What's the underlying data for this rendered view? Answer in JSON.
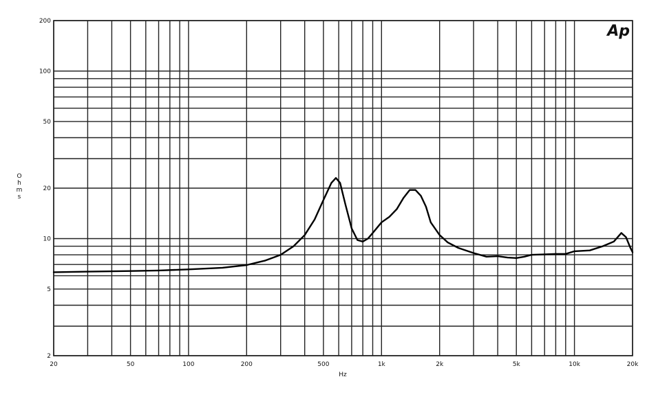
{
  "chart_data": {
    "type": "line",
    "x_scale": "log",
    "y_scale": "log",
    "xlim": [
      20,
      20000
    ],
    "ylim": [
      2,
      200
    ],
    "xlabel": "Hz",
    "ylabel": "Ohms",
    "grid": true,
    "logo": "Ap",
    "x_ticks": [
      {
        "value": 20,
        "label": "20"
      },
      {
        "value": 50,
        "label": "50"
      },
      {
        "value": 100,
        "label": "100"
      },
      {
        "value": 200,
        "label": "200"
      },
      {
        "value": 500,
        "label": "500"
      },
      {
        "value": 1000,
        "label": "1k"
      },
      {
        "value": 2000,
        "label": "2k"
      },
      {
        "value": 5000,
        "label": "5k"
      },
      {
        "value": 10000,
        "label": "10k"
      },
      {
        "value": 20000,
        "label": "20k"
      }
    ],
    "y_ticks": [
      {
        "value": 2,
        "label": "2"
      },
      {
        "value": 5,
        "label": "5"
      },
      {
        "value": 10,
        "label": "10"
      },
      {
        "value": 20,
        "label": "20"
      },
      {
        "value": 50,
        "label": "50"
      },
      {
        "value": 100,
        "label": "100"
      },
      {
        "value": 200,
        "label": "200"
      }
    ],
    "x_grid": [
      20,
      30,
      40,
      50,
      60,
      70,
      80,
      90,
      100,
      200,
      300,
      400,
      500,
      600,
      700,
      800,
      900,
      1000,
      2000,
      3000,
      4000,
      5000,
      6000,
      7000,
      8000,
      9000,
      10000,
      20000
    ],
    "y_grid": [
      2,
      3,
      4,
      5,
      6,
      7,
      8,
      9,
      10,
      20,
      30,
      40,
      50,
      60,
      70,
      80,
      90,
      100,
      200
    ],
    "series": [
      {
        "color": "#000000",
        "x": [
          20,
          30,
          50,
          70,
          100,
          150,
          200,
          250,
          300,
          350,
          400,
          450,
          500,
          550,
          580,
          610,
          650,
          700,
          750,
          800,
          850,
          900,
          1000,
          1100,
          1200,
          1300,
          1400,
          1500,
          1600,
          1700,
          1800,
          2000,
          2200,
          2500,
          3000,
          3500,
          4000,
          4500,
          5000,
          5500,
          6000,
          7000,
          8000,
          9000,
          10000,
          12000,
          14000,
          16000,
          17500,
          18500,
          19500,
          20000
        ],
        "y": [
          6.3,
          6.35,
          6.4,
          6.45,
          6.55,
          6.7,
          6.95,
          7.4,
          8.0,
          9.0,
          10.5,
          13.0,
          17.0,
          21.5,
          23.0,
          21.5,
          16.0,
          11.5,
          9.8,
          9.6,
          10.0,
          10.8,
          12.5,
          13.5,
          15.0,
          17.5,
          19.5,
          19.5,
          18.0,
          15.5,
          12.5,
          10.5,
          9.5,
          8.8,
          8.2,
          7.8,
          7.85,
          7.7,
          7.65,
          7.8,
          8.0,
          8.05,
          8.1,
          8.1,
          8.4,
          8.5,
          9.0,
          9.6,
          10.8,
          10.2,
          8.8,
          8.3
        ]
      }
    ]
  }
}
